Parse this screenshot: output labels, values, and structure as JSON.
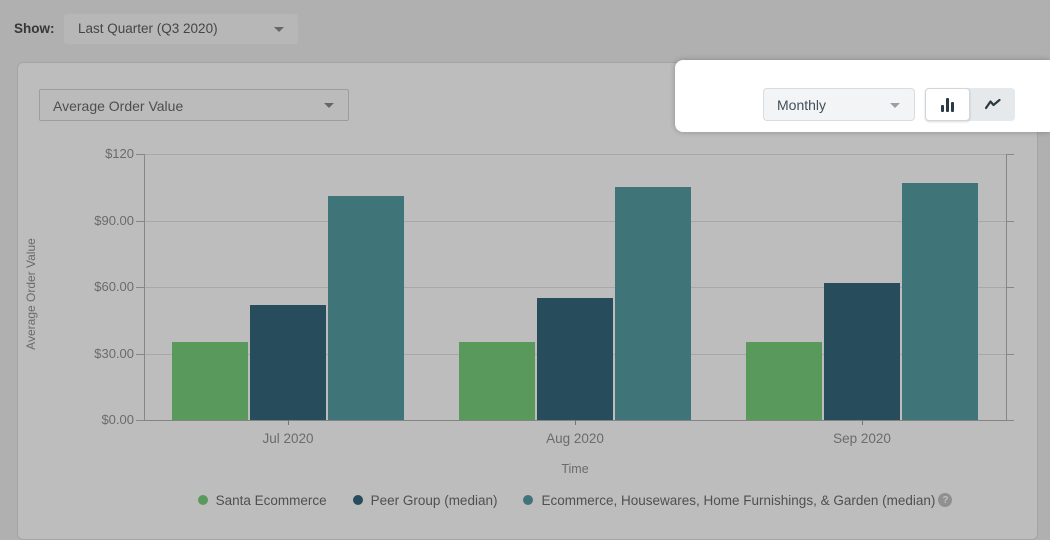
{
  "toolbar": {
    "show_label": "Show:",
    "period_value": "Last Quarter (Q3 2020)"
  },
  "panel": {
    "metric_value": "Average Order Value"
  },
  "spotlight": {
    "frequency_value": "Monthly",
    "active_view": "bar"
  },
  "colors": {
    "series_green": "#77cc7b",
    "series_dark_teal": "#34677b",
    "series_teal": "#549da0",
    "spotlight_bg": "#ffffff"
  },
  "chart_data": {
    "type": "bar",
    "title": "",
    "categories": [
      "Jul 2020",
      "Aug 2020",
      "Sep 2020"
    ],
    "series": [
      {
        "name": "Santa Ecommerce",
        "color": "#77cc7b",
        "values": [
          35,
          35,
          35
        ]
      },
      {
        "name": "Peer Group (median)",
        "color": "#34677b",
        "values": [
          52,
          55,
          62
        ]
      },
      {
        "name": "Ecommerce, Housewares, Home Furnishings, & Garden (median)",
        "color": "#549da0",
        "values": [
          101,
          105,
          107
        ]
      }
    ],
    "xlabel": "Time",
    "ylabel": "Average Order Value",
    "ylim": [
      0,
      120
    ],
    "ytick_values": [
      120,
      90,
      60,
      30,
      0
    ],
    "ytick_labels": [
      "$120",
      "$90.00",
      "$60.00",
      "$30.00",
      "$0.00"
    ],
    "grid": true,
    "legend_position": "bottom",
    "legend_help_icon": "?"
  }
}
